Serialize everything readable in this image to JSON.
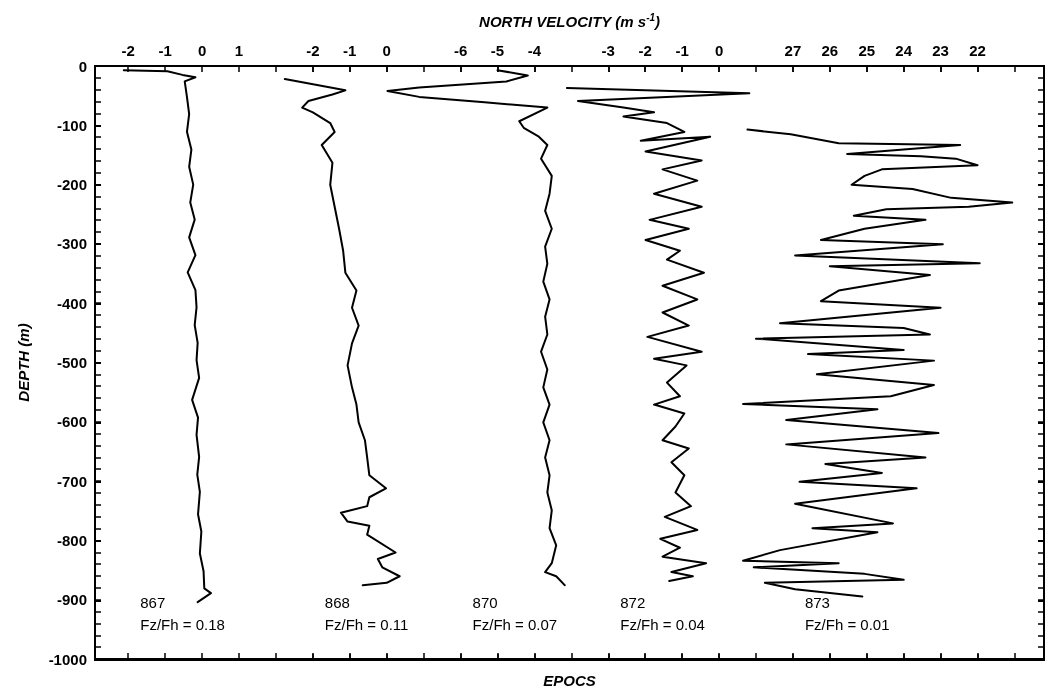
{
  "chart_data": [
    {
      "type": "line",
      "color": "#000000",
      "x2label": "NORTH VELOCITY (m s$^{-1}$)",
      "xlabel": "EPOCS",
      "ylabel": "DEPTH (m)",
      "xlim": [
        -2.9,
        22.8
      ],
      "ylim": [
        -1000,
        0
      ],
      "xticks": [
        -2,
        -1,
        0,
        1,
        {
          "value": 2,
          "label": null
        },
        {
          "value": 3,
          "label": null
        },
        {
          "value": 4,
          "label": null
        },
        {
          "value": 5,
          "label": null
        },
        {
          "value": 6,
          "label": null
        },
        {
          "value": 7,
          "label": null
        },
        {
          "value": 8,
          "label": null
        },
        {
          "value": 9,
          "label": null
        },
        {
          "value": 10,
          "label": null
        },
        {
          "value": 11,
          "label": null
        },
        {
          "value": 12,
          "label": null
        },
        {
          "value": 13,
          "label": null
        },
        {
          "value": 14,
          "label": null
        },
        {
          "value": 15,
          "label": null
        },
        {
          "value": 16,
          "label": null
        },
        {
          "value": 17,
          "label": null
        },
        {
          "value": 18,
          "label": null
        },
        {
          "value": 19,
          "label": null
        },
        {
          "value": 20,
          "label": null
        },
        {
          "value": 21,
          "label": null
        },
        {
          "value": 22,
          "label": null
        }
      ],
      "yticks": [
        0,
        -100,
        -200,
        -300,
        -400,
        -500,
        -600,
        -700,
        -800,
        -900,
        -1000,
        {
          "value": -20,
          "label": null
        },
        {
          "value": -40,
          "label": null
        },
        {
          "value": -60,
          "label": null
        },
        {
          "value": -80,
          "label": null
        },
        {
          "value": -120,
          "label": null
        },
        {
          "value": -140,
          "label": null
        },
        {
          "value": -160,
          "label": null
        },
        {
          "value": -180,
          "label": null
        },
        {
          "value": -220,
          "label": null
        },
        {
          "value": -240,
          "label": null
        },
        {
          "value": -260,
          "label": null
        },
        {
          "value": -280,
          "label": null
        },
        {
          "value": -320,
          "label": null
        },
        {
          "value": -340,
          "label": null
        },
        {
          "value": -360,
          "label": null
        },
        {
          "value": -380,
          "label": null
        },
        {
          "value": -420,
          "label": null
        },
        {
          "value": -440,
          "label": null
        },
        {
          "value": -460,
          "label": null
        },
        {
          "value": -480,
          "label": null
        },
        {
          "value": -520,
          "label": null
        },
        {
          "value": -540,
          "label": null
        },
        {
          "value": -560,
          "label": null
        },
        {
          "value": -580,
          "label": null
        },
        {
          "value": -620,
          "label": null
        },
        {
          "value": -640,
          "label": null
        },
        {
          "value": -660,
          "label": null
        },
        {
          "value": -680,
          "label": null
        },
        {
          "value": -720,
          "label": null
        },
        {
          "value": -740,
          "label": null
        },
        {
          "value": -760,
          "label": null
        },
        {
          "value": -780,
          "label": null
        },
        {
          "value": -820,
          "label": null
        },
        {
          "value": -840,
          "label": null
        },
        {
          "value": -860,
          "label": null
        },
        {
          "value": -880,
          "label": null
        },
        {
          "value": -920,
          "label": null
        },
        {
          "value": -940,
          "label": null
        },
        {
          "value": -960,
          "label": null
        },
        {
          "value": -980,
          "label": null
        }
      ],
      "x": [
        -2.12,
        -0.94,
        -0.53,
        -0.18,
        -0.47,
        -0.41,
        -0.35,
        -0.41,
        -0.29,
        -0.35,
        -0.24,
        -0.32,
        -0.2,
        -0.35,
        -0.18,
        -0.39,
        -0.18,
        -0.15,
        -0.2,
        -0.12,
        -0.15,
        -0.08,
        -0.27,
        -0.11,
        -0.15,
        -0.08,
        -0.13,
        -0.06,
        -0.11,
        -0.02,
        -0.06,
        0.04,
        0.06,
        0.24,
        -0.12
      ],
      "values": [
        -7,
        -9,
        -15,
        -19,
        -26,
        -52,
        -81,
        -111,
        -141,
        -170,
        -200,
        -230,
        -259,
        -289,
        -319,
        -348,
        -378,
        -407,
        -437,
        -467,
        -496,
        -526,
        -563,
        -593,
        -622,
        -659,
        -689,
        -718,
        -756,
        -785,
        -822,
        -852,
        -881,
        -889,
        -904
      ],
      "annotations": [
        "867",
        "Fz/Fh = 0.18"
      ]
    },
    {
      "type": "line",
      "color": "#000000",
      "xlim": [
        -7.9,
        17.8
      ],
      "ylim": [
        -1000,
        0
      ],
      "yticks": [
        0,
        -100,
        -200,
        -300,
        -400,
        -500,
        -600,
        -700,
        -800,
        -900,
        -1000
      ],
      "xticks": [
        -2,
        -1,
        0
      ],
      "tick_labels": "x",
      "x": [
        -2.76,
        -1.12,
        -1.47,
        -2.12,
        -2.29,
        -2.0,
        -1.53,
        -1.41,
        -1.76,
        -1.47,
        -1.53,
        -1.41,
        -1.29,
        -1.18,
        -1.12,
        -0.82,
        -0.94,
        -0.76,
        -0.94,
        -1.06,
        -0.94,
        -0.82,
        -0.76,
        -0.59,
        -0.53,
        -0.47,
        -0.02,
        -0.47,
        -0.53,
        -1.24,
        -1.06,
        -0.47,
        -0.53,
        0.24,
        -0.24,
        -0.12,
        0.35,
        0,
        -0.65
      ],
      "values": [
        -22,
        -41,
        -48,
        -59,
        -70,
        -78,
        -96,
        -111,
        -133,
        -163,
        -200,
        -237,
        -274,
        -311,
        -348,
        -378,
        -407,
        -437,
        -467,
        -504,
        -541,
        -570,
        -600,
        -630,
        -659,
        -689,
        -711,
        -726,
        -741,
        -752,
        -767,
        -774,
        -789,
        -819,
        -830,
        -844,
        -859,
        -870,
        -874
      ],
      "annotations": [
        "868",
        "Fz/Fh = 0.11"
      ]
    },
    {
      "type": "line",
      "color": "#000000",
      "xlim": [
        -15.9,
        9.8
      ],
      "ylim": [
        -1000,
        0
      ],
      "yticks": [
        0,
        -100,
        -200,
        -300,
        -400,
        -500,
        -600,
        -700,
        -800,
        -900,
        -1000
      ],
      "xticks": [
        -6,
        -5,
        -4
      ],
      "tick_labels": "x",
      "x": [
        -5.0,
        -4.18,
        -4.76,
        -7.12,
        -7.98,
        -7.12,
        -5.35,
        -3.65,
        -4.41,
        -4.29,
        -3.88,
        -3.65,
        -3.82,
        -3.53,
        -3.59,
        -3.71,
        -3.53,
        -3.71,
        -3.65,
        -3.76,
        -3.59,
        -3.71,
        -3.65,
        -3.82,
        -3.65,
        -3.76,
        -3.59,
        -3.76,
        -3.59,
        -3.71,
        -3.59,
        -3.65,
        -3.53,
        -3.59,
        -3.41,
        -3.53,
        -3.71,
        -3.41,
        -3.18
      ],
      "values": [
        -7,
        -16,
        -26,
        -36,
        -42,
        -52,
        -61,
        -70,
        -93,
        -104,
        -119,
        -133,
        -156,
        -185,
        -215,
        -244,
        -274,
        -304,
        -333,
        -363,
        -393,
        -422,
        -452,
        -481,
        -511,
        -541,
        -570,
        -600,
        -630,
        -659,
        -689,
        -718,
        -748,
        -778,
        -807,
        -837,
        -852,
        -859,
        -874
      ],
      "annotations": [
        "870",
        "Fz/Fh = 0.07"
      ]
    },
    {
      "type": "line",
      "color": "#000000",
      "xlim": [
        -16.9,
        8.8
      ],
      "ylim": [
        -1000,
        0
      ],
      "yticks": [
        0,
        -100,
        -200,
        -300,
        -400,
        -500,
        -600,
        -700,
        -800,
        -900,
        -1000
      ],
      "xticks": [
        -3,
        -2,
        -1,
        0
      ],
      "tick_labels": "x",
      "x": [
        -4.12,
        0.82,
        -3.82,
        -2.59,
        -1.76,
        -2.59,
        -1.41,
        -0.94,
        -2.12,
        -0.24,
        -1.99,
        -0.47,
        -1.53,
        -0.59,
        -1.76,
        -0.47,
        -1.88,
        -0.82,
        -1.99,
        -1.06,
        -1.41,
        -0.41,
        -1.53,
        -0.59,
        -1.53,
        -0.82,
        -1.94,
        -0.47,
        -1.76,
        -0.88,
        -1.41,
        -1.06,
        -1.76,
        -0.94,
        -1.18,
        -1.53,
        -0.82,
        -1.29,
        -0.94,
        -1.18,
        -0.76,
        -1.47,
        -0.59,
        -1.59,
        -1.06,
        -1.53,
        -0.35,
        -1.29,
        -0.71,
        -1.35
      ],
      "values": [
        -37,
        -46,
        -59,
        -70,
        -78,
        -85,
        -96,
        -111,
        -126,
        -119,
        -144,
        -159,
        -174,
        -193,
        -215,
        -237,
        -259,
        -274,
        -293,
        -311,
        -326,
        -348,
        -370,
        -393,
        -415,
        -437,
        -456,
        -481,
        -493,
        -504,
        -533,
        -556,
        -570,
        -585,
        -607,
        -630,
        -644,
        -667,
        -689,
        -718,
        -741,
        -759,
        -781,
        -796,
        -811,
        -826,
        -837,
        -852,
        -859,
        -867
      ],
      "annotations": [
        "872",
        "Fz/Fh = 0.04"
      ]
    },
    {
      "type": "line",
      "color": "#000000",
      "xlim": [
        45.9,
        20.2
      ],
      "ylim": [
        -1000,
        0
      ],
      "yticks": [
        0,
        -100,
        -200,
        -300,
        -400,
        -500,
        -600,
        -700,
        -800,
        -900,
        -1000
      ],
      "xticks": [
        27,
        26,
        25,
        24,
        23,
        22
      ],
      "tick_labels": "x",
      "x": [
        28.23,
        27.06,
        25.76,
        22.47,
        25.53,
        23.53,
        22.59,
        22.0,
        24.59,
        25.06,
        25.41,
        23.76,
        22.71,
        21.06,
        22.24,
        24.47,
        25.35,
        23.41,
        25.06,
        26.24,
        22.94,
        26.94,
        21.94,
        26.0,
        23.29,
        25.76,
        26.24,
        23.0,
        27.35,
        24.0,
        23.29,
        28.0,
        24.0,
        26.59,
        23.18,
        26.35,
        23.18,
        24.35,
        28.35,
        24.71,
        27.18,
        23.06,
        27.18,
        23.41,
        26.12,
        24.59,
        26.82,
        23.65,
        26.94,
        24.29,
        26.47,
        24.71,
        27.35,
        28.35,
        25.76,
        28.06,
        25.06,
        24.0,
        27.76,
        26.94,
        25.12
      ],
      "values": [
        -107,
        -115,
        -130,
        -133,
        -148,
        -152,
        -156,
        -167,
        -174,
        -185,
        -200,
        -207,
        -222,
        -230,
        -237,
        -241,
        -252,
        -259,
        -274,
        -293,
        -300,
        -319,
        -332,
        -337,
        -352,
        -378,
        -396,
        -407,
        -433,
        -441,
        -452,
        -459,
        -478,
        -485,
        -496,
        -519,
        -537,
        -556,
        -569,
        -578,
        -596,
        -618,
        -637,
        -659,
        -670,
        -685,
        -700,
        -711,
        -737,
        -770,
        -778,
        -785,
        -815,
        -833,
        -837,
        -844,
        -855,
        -865,
        -870,
        -881,
        -893
      ],
      "annotations": [
        "873",
        "Fz/Fh = 0.01"
      ]
    }
  ]
}
